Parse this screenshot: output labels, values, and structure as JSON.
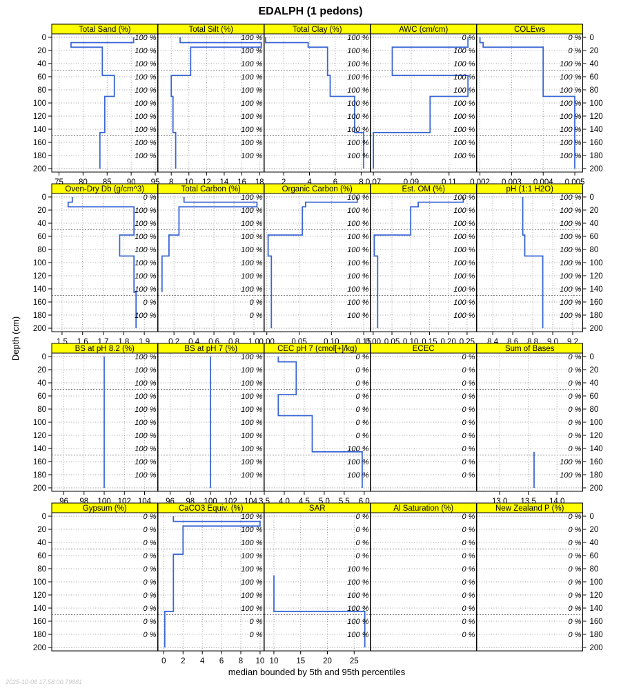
{
  "chart_data": {
    "type": "line",
    "title": "EDALPH (1 pedons)",
    "xlabel": "median bounded by 5th and 95th percentiles",
    "ylabel": "Depth (cm)",
    "timestamp": "2025-10-08 17:58:00.79881",
    "depth_ticks": [
      "0",
      "20",
      "40",
      "60",
      "80",
      "100",
      "120",
      "140",
      "160",
      "180",
      "200"
    ],
    "depth_range": [
      0,
      200
    ],
    "grid": true,
    "strip_color": "#ffff00",
    "line_color": "#3a66d6",
    "pct_depths": [
      0,
      20,
      40,
      60,
      80,
      100,
      120,
      140,
      160,
      180
    ],
    "panels": [
      {
        "name": "Total Sand (%)",
        "xlim": [
          73.5,
          95.5
        ],
        "xticks": [
          75,
          80,
          85,
          90,
          95
        ],
        "xtick_labels": [
          "75",
          "80",
          "85",
          "90",
          "95"
        ],
        "steps": [
          [
            0,
            8,
            90.5
          ],
          [
            8,
            15,
            77.5
          ],
          [
            15,
            58,
            84
          ],
          [
            58,
            90,
            86.5
          ],
          [
            90,
            145,
            84.5
          ],
          [
            145,
            200,
            83.5
          ]
        ],
        "pct": [
          "100 %",
          "100 %",
          "100 %",
          "100 %",
          "100 %",
          "100 %",
          "100 %",
          "100 %",
          "100 %",
          "100 %"
        ]
      },
      {
        "name": "Total Silt (%)",
        "xlim": [
          6.5,
          18.5
        ],
        "xticks": [
          8,
          10,
          12,
          14,
          16,
          18
        ],
        "xtick_labels": [
          "8",
          "10",
          "12",
          "14",
          "16",
          "18"
        ],
        "steps": [
          [
            0,
            8,
            9
          ],
          [
            8,
            15,
            18.2
          ],
          [
            15,
            58,
            10.2
          ],
          [
            58,
            90,
            8
          ],
          [
            90,
            145,
            8.2
          ],
          [
            145,
            200,
            8.5
          ]
        ],
        "pct": [
          "100 %",
          "100 %",
          "100 %",
          "100 %",
          "100 %",
          "100 %",
          "100 %",
          "100 %",
          "100 %",
          "100 %"
        ]
      },
      {
        "name": "Total Clay (%)",
        "xlim": [
          0.5,
          8.7
        ],
        "xticks": [
          2,
          4,
          6,
          8
        ],
        "xtick_labels": [
          "2",
          "4",
          "6",
          "8"
        ],
        "steps": [
          [
            0,
            8,
            0.6
          ],
          [
            8,
            15,
            3.9
          ],
          [
            15,
            58,
            5.4
          ],
          [
            58,
            90,
            5.6
          ],
          [
            90,
            145,
            7.5
          ],
          [
            145,
            200,
            8.2
          ]
        ],
        "pct": [
          "100 %",
          "100 %",
          "100 %",
          "100 %",
          "100 %",
          "100 %",
          "100 %",
          "100 %",
          "100 %",
          "100 %"
        ]
      },
      {
        "name": "AWC (cm/cm)",
        "xlim": [
          0.0685,
          0.1245
        ],
        "xticks": [
          0.07,
          0.09,
          0.11
        ],
        "xtick_labels": [
          "0.07",
          "0.09",
          "0.11"
        ],
        "steps": [
          [
            0,
            15,
            0.12
          ],
          [
            15,
            58,
            0.08
          ],
          [
            58,
            90,
            0.12
          ],
          [
            90,
            145,
            0.1
          ],
          [
            145,
            200,
            0.07
          ]
        ],
        "pct": [
          "0 %",
          "100 %",
          "100 %",
          "100 %",
          "100 %",
          "100 %",
          "100 %",
          "100 %",
          "100 %",
          "100 %"
        ]
      },
      {
        "name": "COLEws",
        "xlim": [
          0.0019,
          0.00525
        ],
        "xticks": [
          0.002,
          0.003,
          0.004,
          0.005
        ],
        "xtick_labels": [
          "0.002",
          "0.003",
          "0.004",
          "0.005"
        ],
        "steps": [
          [
            0,
            8,
            0.002
          ],
          [
            8,
            15,
            0.0021
          ],
          [
            15,
            90,
            0.004
          ],
          [
            90,
            200,
            0.005
          ]
        ],
        "pct": [
          "0 %",
          "0 %",
          "100 %",
          "100 %",
          "100 %",
          "100 %",
          "100 %",
          "100 %",
          "100 %",
          "100 %"
        ]
      },
      {
        "name": "Oven-Dry Db (g/cm^3)",
        "xlim": [
          1.45,
          1.965
        ],
        "xticks": [
          1.5,
          1.6,
          1.7,
          1.8,
          1.9
        ],
        "xtick_labels": [
          "1.5",
          "1.6",
          "1.7",
          "1.8",
          "1.9"
        ],
        "steps": [
          [
            0,
            8,
            1.55
          ],
          [
            8,
            15,
            1.53
          ],
          [
            15,
            58,
            1.85
          ],
          [
            58,
            90,
            1.78
          ],
          [
            90,
            145,
            1.85
          ],
          [
            145,
            200,
            1.86
          ]
        ],
        "pct": [
          "0 %",
          "100 %",
          "100 %",
          "100 %",
          "100 %",
          "100 %",
          "100 %",
          "100 %",
          "0 %",
          "100 %"
        ]
      },
      {
        "name": "Total Carbon (%)",
        "xlim": [
          0.04,
          1.1
        ],
        "xticks": [
          0.2,
          0.4,
          0.6,
          0.8,
          1.0
        ],
        "xtick_labels": [
          "0.2",
          "0.4",
          "0.6",
          "0.8",
          "1.0"
        ],
        "steps": [
          [
            0,
            8,
            0.3
          ],
          [
            8,
            15,
            1.03
          ],
          [
            15,
            58,
            0.25
          ],
          [
            58,
            90,
            0.15
          ],
          [
            90,
            145,
            0.08
          ]
        ],
        "pct": [
          "100 %",
          "100 %",
          "100 %",
          "100 %",
          "100 %",
          "100 %",
          "100 %",
          "100 %",
          "0 %",
          "0 %"
        ]
      },
      {
        "name": "Organic Carbon (%)",
        "xlim": [
          -0.004,
          0.16
        ],
        "xticks": [
          0,
          0.05,
          0.1,
          0.15
        ],
        "xtick_labels": [
          "0.00",
          "0.05",
          "0.10",
          "0.15"
        ],
        "steps": [
          [
            0,
            8,
            0.14
          ],
          [
            8,
            15,
            0.06
          ],
          [
            15,
            58,
            0.055
          ],
          [
            58,
            90,
            0.002
          ],
          [
            90,
            200,
            0.007
          ]
        ],
        "pct": [
          "100 %",
          "100 %",
          "100 %",
          "100 %",
          "100 %",
          "100 %",
          "100 %",
          "100 %",
          "100 %",
          "100 %"
        ]
      },
      {
        "name": "Est. OM (%)",
        "xlim": [
          -0.007,
          0.275
        ],
        "xticks": [
          0,
          0.05,
          0.1,
          0.15,
          0.2,
          0.25
        ],
        "xtick_labels": [
          "0.00",
          "0.05",
          "0.10",
          "0.15",
          "0.20",
          "0.25"
        ],
        "steps": [
          [
            0,
            8,
            0.24
          ],
          [
            8,
            15,
            0.12
          ],
          [
            15,
            58,
            0.1
          ],
          [
            58,
            90,
            0.003
          ],
          [
            90,
            200,
            0.012
          ]
        ],
        "pct": [
          "100 %",
          "100 %",
          "100 %",
          "100 %",
          "100 %",
          "100 %",
          "100 %",
          "100 %",
          "100 %",
          "100 %"
        ]
      },
      {
        "name": "pH (1:1 H2O)",
        "xlim": [
          8.24,
          9.3
        ],
        "xticks": [
          8.4,
          8.6,
          8.8,
          9.0,
          9.2
        ],
        "xtick_labels": [
          "8.4",
          "8.6",
          "8.8",
          "9.0",
          "9.2"
        ],
        "steps": [
          [
            0,
            58,
            8.7
          ],
          [
            58,
            90,
            8.72
          ],
          [
            90,
            200,
            8.9
          ]
        ],
        "pct": [
          "100 %",
          "100 %",
          "100 %",
          "100 %",
          "100 %",
          "100 %",
          "100 %",
          "100 %",
          "100 %",
          "100 %"
        ]
      },
      {
        "name": "BS at pH 8.2 (%)",
        "xlim": [
          94.8,
          105.3
        ],
        "xticks": [
          96,
          98,
          100,
          102,
          104
        ],
        "xtick_labels": [
          "96",
          "98",
          "100",
          "102",
          "104"
        ],
        "steps": [
          [
            0,
            200,
            100
          ]
        ],
        "pct": [
          "100 %",
          "100 %",
          "100 %",
          "100 %",
          "100 %",
          "100 %",
          "100 %",
          "100 %",
          "100 %",
          "100 %"
        ]
      },
      {
        "name": "BS at pH 7 (%)",
        "xlim": [
          94.8,
          105.3
        ],
        "xticks": [
          96,
          98,
          100,
          102,
          104
        ],
        "xtick_labels": [
          "96",
          "98",
          "100",
          "102",
          "104"
        ],
        "steps": [
          [
            0,
            200,
            100
          ]
        ],
        "pct": [
          "100 %",
          "100 %",
          "100 %",
          "100 %",
          "100 %",
          "100 %",
          "100 %",
          "100 %",
          "100 %",
          "100 %"
        ]
      },
      {
        "name": "CEC pH 7 (cmol[+]/kg)",
        "xlim": [
          3.5,
          6.15
        ],
        "xticks": [
          3.5,
          4.0,
          4.5,
          5.0,
          5.5,
          6.0
        ],
        "xtick_labels": [
          "3.5",
          "4.0",
          "4.5",
          "5.0",
          "5.5",
          "6.0"
        ],
        "steps": [
          [
            0,
            8,
            3.85
          ],
          [
            8,
            58,
            4.3
          ],
          [
            58,
            90,
            3.85
          ],
          [
            90,
            145,
            4.7
          ],
          [
            145,
            200,
            5.95
          ]
        ],
        "pct": [
          "0 %",
          "0 %",
          "0 %",
          "0 %",
          "0 %",
          "0 %",
          "0 %",
          "100 %",
          "100 %",
          "100 %"
        ]
      },
      {
        "name": "ECEC",
        "xlim": [
          0,
          1
        ],
        "xticks": [],
        "xtick_labels": [],
        "steps": [],
        "pct": [
          "0 %",
          "0 %",
          "0 %",
          "0 %",
          "0 %",
          "0 %",
          "0 %",
          "0 %",
          "0 %",
          "0 %"
        ]
      },
      {
        "name": "Sum of Bases",
        "xlim": [
          12.6,
          14.45
        ],
        "xticks": [
          13.0,
          13.5,
          14.0
        ],
        "xtick_labels": [
          "13.0",
          "13.5",
          "14.0"
        ],
        "steps": [
          [
            145,
            200,
            13.6
          ]
        ],
        "pct": [
          "0 %",
          "0 %",
          "0 %",
          "0 %",
          "0 %",
          "0 %",
          "0 %",
          "0 %",
          "100 %",
          "100 %"
        ]
      },
      {
        "name": "Gypsum (%)",
        "xlim": [
          0,
          1
        ],
        "xticks": [],
        "xtick_labels": [],
        "steps": [],
        "pct": [
          "0 %",
          "0 %",
          "0 %",
          "0 %",
          "0 %",
          "0 %",
          "0 %",
          "0 %",
          "0 %",
          "0 %"
        ]
      },
      {
        "name": "CaCO3 Equiv. (%)",
        "xlim": [
          -0.6,
          10.4
        ],
        "xticks": [
          0,
          2,
          4,
          6,
          8,
          10
        ],
        "xtick_labels": [
          "0",
          "2",
          "4",
          "6",
          "8",
          "10"
        ],
        "steps": [
          [
            0,
            8,
            1
          ],
          [
            8,
            15,
            10
          ],
          [
            15,
            58,
            2
          ],
          [
            58,
            145,
            1
          ],
          [
            145,
            200,
            0.1
          ]
        ],
        "pct": [
          "100 %",
          "100 %",
          "100 %",
          "100 %",
          "100 %",
          "100 %",
          "100 %",
          "100 %",
          "0 %",
          "0 %"
        ]
      },
      {
        "name": "SAR",
        "xlim": [
          8.2,
          28
        ],
        "xticks": [
          10,
          15,
          20,
          25
        ],
        "xtick_labels": [
          "10",
          "15",
          "20",
          "25"
        ],
        "steps": [
          [
            90,
            145,
            10
          ],
          [
            145,
            200,
            27
          ]
        ],
        "pct": [
          "0 %",
          "0 %",
          "0 %",
          "0 %",
          "100 %",
          "100 %",
          "100 %",
          "100 %",
          "100 %",
          "100 %"
        ]
      },
      {
        "name": "Al Saturation (%)",
        "xlim": [
          0,
          1
        ],
        "xticks": [],
        "xtick_labels": [],
        "steps": [],
        "pct": [
          "0 %",
          "0 %",
          "0 %",
          "0 %",
          "0 %",
          "0 %",
          "0 %",
          "0 %",
          "0 %",
          "0 %"
        ]
      },
      {
        "name": "New Zealand P (%)",
        "xlim": [
          0,
          1
        ],
        "xticks": [],
        "xtick_labels": [],
        "steps": [],
        "pct": [
          "0 %",
          "0 %",
          "0 %",
          "0 %",
          "0 %",
          "0 %",
          "0 %",
          "0 %",
          "0 %",
          "0 %"
        ]
      }
    ]
  }
}
